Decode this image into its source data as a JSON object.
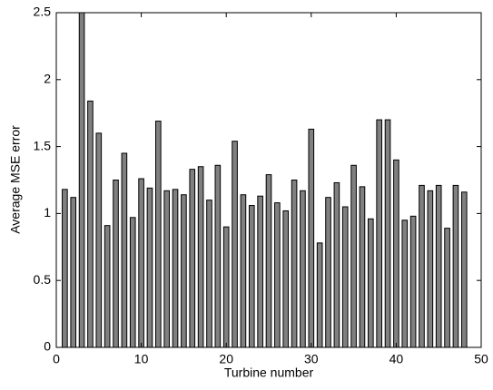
{
  "chart_data": {
    "type": "bar",
    "x": [
      1,
      2,
      3,
      4,
      5,
      6,
      7,
      8,
      9,
      10,
      11,
      12,
      13,
      14,
      15,
      16,
      17,
      18,
      19,
      20,
      21,
      22,
      23,
      24,
      25,
      26,
      27,
      28,
      29,
      30,
      31,
      32,
      33,
      34,
      35,
      36,
      37,
      38,
      39,
      40,
      41,
      42,
      43,
      44,
      45,
      46,
      47,
      48
    ],
    "values": [
      1.18,
      1.12,
      2.5,
      1.84,
      1.6,
      0.91,
      1.25,
      1.45,
      0.97,
      1.26,
      1.19,
      1.69,
      1.17,
      1.18,
      1.14,
      1.33,
      1.35,
      1.1,
      1.36,
      0.9,
      1.54,
      1.14,
      1.06,
      1.13,
      1.29,
      1.08,
      1.02,
      1.25,
      1.17,
      1.63,
      0.78,
      1.12,
      1.23,
      1.05,
      1.36,
      1.2,
      0.96,
      1.7,
      1.7,
      1.4,
      0.95,
      0.98,
      1.21,
      1.17,
      1.21,
      0.89,
      1.21,
      1.16
    ],
    "color": "#808080",
    "xlabel": "Turbine number",
    "ylabel": "Average MSE error",
    "xlim": [
      0,
      50
    ],
    "xticks": [
      0,
      10,
      20,
      30,
      40,
      50
    ],
    "ylim": [
      0,
      2.5
    ],
    "yticks": [
      0,
      0.5,
      1,
      1.5,
      2,
      2.5
    ]
  }
}
